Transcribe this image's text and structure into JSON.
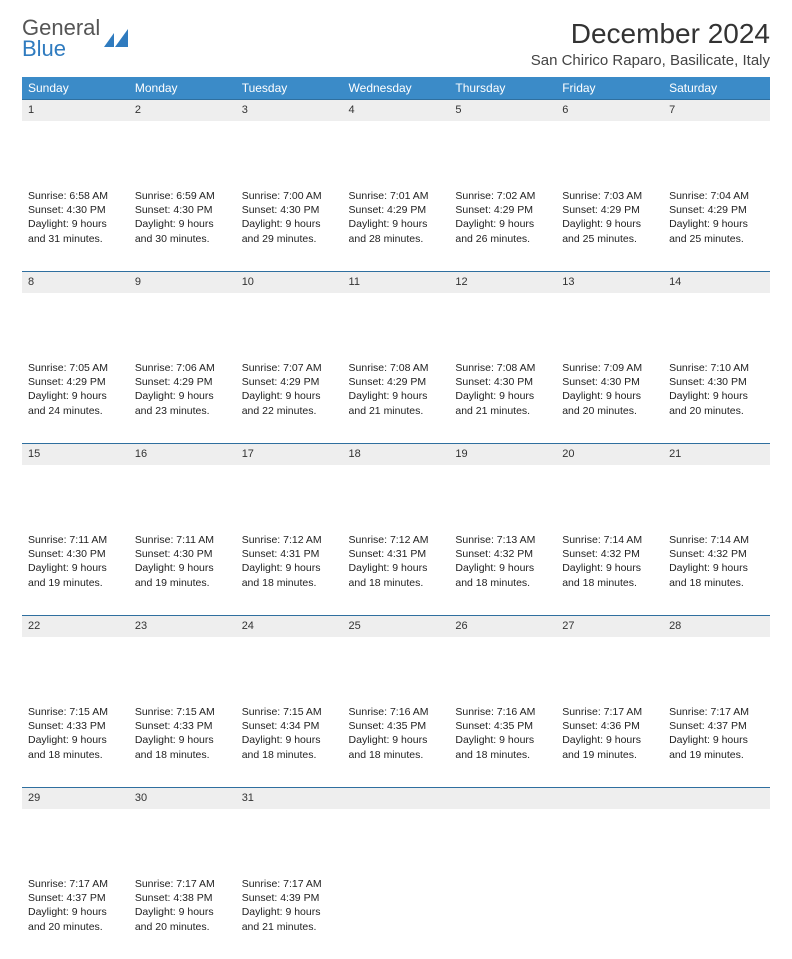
{
  "brand": {
    "line1": "General",
    "line2": "Blue"
  },
  "title": "December 2024",
  "location": "San Chirico Raparo, Basilicate, Italy",
  "colors": {
    "header_bg": "#3b8bc8",
    "header_text": "#ffffff",
    "daynum_bg": "#eeeeee",
    "row_border": "#2f6f9f",
    "brand_gray": "#555555",
    "brand_blue": "#2f7bbf",
    "body_text": "#222222",
    "page_bg": "#ffffff"
  },
  "typography": {
    "title_fontsize": 28,
    "location_fontsize": 15,
    "dayheader_fontsize": 12,
    "cell_fontsize": 10.5
  },
  "day_headers": [
    "Sunday",
    "Monday",
    "Tuesday",
    "Wednesday",
    "Thursday",
    "Friday",
    "Saturday"
  ],
  "weeks": [
    [
      {
        "n": "1",
        "sunrise": "6:58 AM",
        "sunset": "4:30 PM",
        "daylight": "9 hours and 31 minutes."
      },
      {
        "n": "2",
        "sunrise": "6:59 AM",
        "sunset": "4:30 PM",
        "daylight": "9 hours and 30 minutes."
      },
      {
        "n": "3",
        "sunrise": "7:00 AM",
        "sunset": "4:30 PM",
        "daylight": "9 hours and 29 minutes."
      },
      {
        "n": "4",
        "sunrise": "7:01 AM",
        "sunset": "4:29 PM",
        "daylight": "9 hours and 28 minutes."
      },
      {
        "n": "5",
        "sunrise": "7:02 AM",
        "sunset": "4:29 PM",
        "daylight": "9 hours and 26 minutes."
      },
      {
        "n": "6",
        "sunrise": "7:03 AM",
        "sunset": "4:29 PM",
        "daylight": "9 hours and 25 minutes."
      },
      {
        "n": "7",
        "sunrise": "7:04 AM",
        "sunset": "4:29 PM",
        "daylight": "9 hours and 25 minutes."
      }
    ],
    [
      {
        "n": "8",
        "sunrise": "7:05 AM",
        "sunset": "4:29 PM",
        "daylight": "9 hours and 24 minutes."
      },
      {
        "n": "9",
        "sunrise": "7:06 AM",
        "sunset": "4:29 PM",
        "daylight": "9 hours and 23 minutes."
      },
      {
        "n": "10",
        "sunrise": "7:07 AM",
        "sunset": "4:29 PM",
        "daylight": "9 hours and 22 minutes."
      },
      {
        "n": "11",
        "sunrise": "7:08 AM",
        "sunset": "4:29 PM",
        "daylight": "9 hours and 21 minutes."
      },
      {
        "n": "12",
        "sunrise": "7:08 AM",
        "sunset": "4:30 PM",
        "daylight": "9 hours and 21 minutes."
      },
      {
        "n": "13",
        "sunrise": "7:09 AM",
        "sunset": "4:30 PM",
        "daylight": "9 hours and 20 minutes."
      },
      {
        "n": "14",
        "sunrise": "7:10 AM",
        "sunset": "4:30 PM",
        "daylight": "9 hours and 20 minutes."
      }
    ],
    [
      {
        "n": "15",
        "sunrise": "7:11 AM",
        "sunset": "4:30 PM",
        "daylight": "9 hours and 19 minutes."
      },
      {
        "n": "16",
        "sunrise": "7:11 AM",
        "sunset": "4:30 PM",
        "daylight": "9 hours and 19 minutes."
      },
      {
        "n": "17",
        "sunrise": "7:12 AM",
        "sunset": "4:31 PM",
        "daylight": "9 hours and 18 minutes."
      },
      {
        "n": "18",
        "sunrise": "7:12 AM",
        "sunset": "4:31 PM",
        "daylight": "9 hours and 18 minutes."
      },
      {
        "n": "19",
        "sunrise": "7:13 AM",
        "sunset": "4:32 PM",
        "daylight": "9 hours and 18 minutes."
      },
      {
        "n": "20",
        "sunrise": "7:14 AM",
        "sunset": "4:32 PM",
        "daylight": "9 hours and 18 minutes."
      },
      {
        "n": "21",
        "sunrise": "7:14 AM",
        "sunset": "4:32 PM",
        "daylight": "9 hours and 18 minutes."
      }
    ],
    [
      {
        "n": "22",
        "sunrise": "7:15 AM",
        "sunset": "4:33 PM",
        "daylight": "9 hours and 18 minutes."
      },
      {
        "n": "23",
        "sunrise": "7:15 AM",
        "sunset": "4:33 PM",
        "daylight": "9 hours and 18 minutes."
      },
      {
        "n": "24",
        "sunrise": "7:15 AM",
        "sunset": "4:34 PM",
        "daylight": "9 hours and 18 minutes."
      },
      {
        "n": "25",
        "sunrise": "7:16 AM",
        "sunset": "4:35 PM",
        "daylight": "9 hours and 18 minutes."
      },
      {
        "n": "26",
        "sunrise": "7:16 AM",
        "sunset": "4:35 PM",
        "daylight": "9 hours and 18 minutes."
      },
      {
        "n": "27",
        "sunrise": "7:17 AM",
        "sunset": "4:36 PM",
        "daylight": "9 hours and 19 minutes."
      },
      {
        "n": "28",
        "sunrise": "7:17 AM",
        "sunset": "4:37 PM",
        "daylight": "9 hours and 19 minutes."
      }
    ],
    [
      {
        "n": "29",
        "sunrise": "7:17 AM",
        "sunset": "4:37 PM",
        "daylight": "9 hours and 20 minutes."
      },
      {
        "n": "30",
        "sunrise": "7:17 AM",
        "sunset": "4:38 PM",
        "daylight": "9 hours and 20 minutes."
      },
      {
        "n": "31",
        "sunrise": "7:17 AM",
        "sunset": "4:39 PM",
        "daylight": "9 hours and 21 minutes."
      },
      {
        "empty": true
      },
      {
        "empty": true
      },
      {
        "empty": true
      },
      {
        "empty": true
      }
    ]
  ],
  "labels": {
    "sunrise": "Sunrise: ",
    "sunset": "Sunset: ",
    "daylight": "Daylight: "
  }
}
